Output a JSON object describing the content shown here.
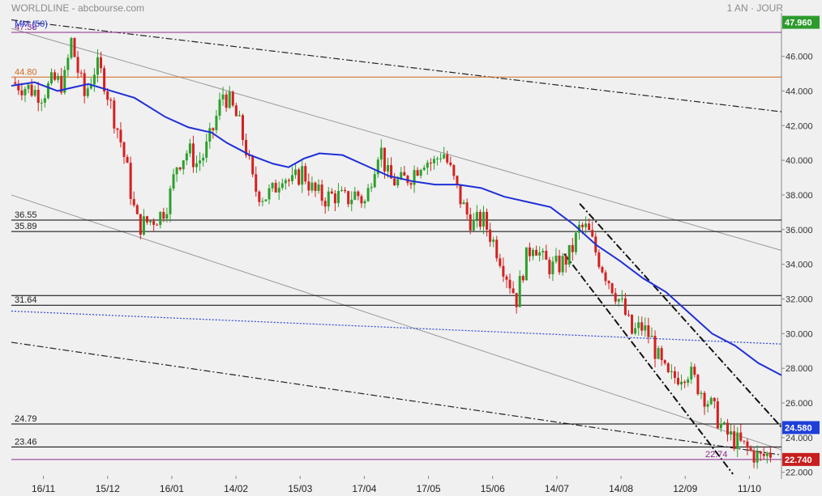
{
  "header": {
    "title": "WORLDLINE - abcbourse.com",
    "period": "1 AN · JOUR"
  },
  "indicator_label": "MM (50)",
  "colors": {
    "up": "#2ca02c",
    "down": "#d42020",
    "ma": "#1f2fd6",
    "purple": "#8b2b8b",
    "orange": "#d2691e",
    "black": "#000000",
    "last_badge": "#2d9b2d",
    "close_badge": "#1e40d8",
    "low_badge": "#c81e1e"
  },
  "chart_data": {
    "type": "candlestick",
    "title": "WORLDLINE - abcbourse.com",
    "ylim": [
      21.8,
      48.5
    ],
    "yticks": [
      22,
      24,
      26,
      28,
      30,
      32,
      34,
      36,
      38,
      40,
      42,
      44,
      46
    ],
    "ytick_labels": [
      "22.000",
      "24.000",
      "26.000",
      "28.000",
      "30.000",
      "32.000",
      "34.000",
      "36.000",
      "38.000",
      "40.000",
      "42.000",
      "44.000",
      "46.000"
    ],
    "xlabels": [
      "16/11",
      "15/12",
      "16/01",
      "14/02",
      "15/03",
      "17/04",
      "17/05",
      "15/06",
      "14/07",
      "14/08",
      "12/09",
      "11/10"
    ],
    "hlines": [
      {
        "y": 47.38,
        "label": "47.38",
        "color": "purple"
      },
      {
        "y": 44.8,
        "label": "44.80",
        "color": "orange"
      },
      {
        "y": 36.55,
        "label": "36.55",
        "color": "black"
      },
      {
        "y": 35.89,
        "label": "35.89",
        "color": "black"
      },
      {
        "y": 32.2,
        "label": "",
        "color": "black"
      },
      {
        "y": 31.64,
        "label": "31.64",
        "color": "black"
      },
      {
        "y": 24.79,
        "label": "24.79",
        "color": "black"
      },
      {
        "y": 23.46,
        "label": "23.46",
        "color": "black"
      },
      {
        "y": 22.74,
        "label": "22.74",
        "color": "purple"
      }
    ],
    "trendlines": [
      {
        "p1": [
          0,
          48.1
        ],
        "p2": [
          1.0,
          42.8
        ],
        "style": "dashdot"
      },
      {
        "p1": [
          0,
          47.6
        ],
        "p2": [
          1.0,
          34.8
        ],
        "style": "thin"
      },
      {
        "p1": [
          0,
          38.0
        ],
        "p2": [
          1.0,
          23.3
        ],
        "style": "thin"
      },
      {
        "p1": [
          0,
          29.5
        ],
        "p2": [
          1.0,
          23.0
        ],
        "style": "dashdot"
      },
      {
        "p1": [
          0,
          31.3
        ],
        "p2": [
          1.0,
          29.4
        ],
        "style": "dotted-blue"
      },
      {
        "p1": [
          0.738,
          37.5
        ],
        "p2": [
          1.0,
          24.6
        ],
        "style": "dash-bold"
      },
      {
        "p1": [
          0.718,
          34.6
        ],
        "p2": [
          0.937,
          21.9
        ],
        "style": "dash-bold"
      }
    ],
    "ma50": [
      [
        0.0,
        44.3
      ],
      [
        0.03,
        44.5
      ],
      [
        0.06,
        44.0
      ],
      [
        0.1,
        44.4
      ],
      [
        0.13,
        44.0
      ],
      [
        0.16,
        43.6
      ],
      [
        0.2,
        42.5
      ],
      [
        0.23,
        41.9
      ],
      [
        0.26,
        41.6
      ],
      [
        0.28,
        41.0
      ],
      [
        0.31,
        40.3
      ],
      [
        0.34,
        39.8
      ],
      [
        0.36,
        39.6
      ],
      [
        0.38,
        40.1
      ],
      [
        0.4,
        40.4
      ],
      [
        0.43,
        40.3
      ],
      [
        0.46,
        39.7
      ],
      [
        0.49,
        39.1
      ],
      [
        0.52,
        38.8
      ],
      [
        0.55,
        38.6
      ],
      [
        0.58,
        38.6
      ],
      [
        0.61,
        38.4
      ],
      [
        0.64,
        37.9
      ],
      [
        0.67,
        37.6
      ],
      [
        0.7,
        37.3
      ],
      [
        0.73,
        36.3
      ],
      [
        0.76,
        35.1
      ],
      [
        0.79,
        34.2
      ],
      [
        0.82,
        33.2
      ],
      [
        0.85,
        32.4
      ],
      [
        0.88,
        31.2
      ],
      [
        0.91,
        30.0
      ],
      [
        0.94,
        29.3
      ],
      [
        0.97,
        28.3
      ],
      [
        1.0,
        27.6
      ]
    ],
    "close_path": [
      [
        0.0,
        44.5
      ],
      [
        0.02,
        44.2
      ],
      [
        0.04,
        43.8
      ],
      [
        0.055,
        44.6
      ],
      [
        0.068,
        44.4
      ],
      [
        0.078,
        46.9
      ],
      [
        0.085,
        45.4
      ],
      [
        0.095,
        43.7
      ],
      [
        0.11,
        45.5
      ],
      [
        0.12,
        44.7
      ],
      [
        0.13,
        43.0
      ],
      [
        0.14,
        41.5
      ],
      [
        0.15,
        39.5
      ],
      [
        0.158,
        37.4
      ],
      [
        0.165,
        36.2
      ],
      [
        0.18,
        36.5
      ],
      [
        0.195,
        36.9
      ],
      [
        0.205,
        37.8
      ],
      [
        0.215,
        39.8
      ],
      [
        0.23,
        40.6
      ],
      [
        0.24,
        39.8
      ],
      [
        0.25,
        40.3
      ],
      [
        0.26,
        41.5
      ],
      [
        0.275,
        43.9
      ],
      [
        0.285,
        43.2
      ],
      [
        0.295,
        42.2
      ],
      [
        0.305,
        40.6
      ],
      [
        0.315,
        38.4
      ],
      [
        0.328,
        37.9
      ],
      [
        0.34,
        38.2
      ],
      [
        0.352,
        39.3
      ],
      [
        0.364,
        38.6
      ],
      [
        0.378,
        39.4
      ],
      [
        0.392,
        38.2
      ],
      [
        0.406,
        37.8
      ],
      [
        0.42,
        38.0
      ],
      [
        0.434,
        37.7
      ],
      [
        0.448,
        38.1
      ],
      [
        0.46,
        37.5
      ],
      [
        0.468,
        39.2
      ],
      [
        0.478,
        40.9
      ],
      [
        0.49,
        38.9
      ],
      [
        0.505,
        38.7
      ],
      [
        0.52,
        39.2
      ],
      [
        0.535,
        40.1
      ],
      [
        0.548,
        39.8
      ],
      [
        0.56,
        40.6
      ],
      [
        0.57,
        39.4
      ],
      [
        0.58,
        38.1
      ],
      [
        0.59,
        37.0
      ],
      [
        0.6,
        36.3
      ],
      [
        0.612,
        36.6
      ],
      [
        0.622,
        35.7
      ],
      [
        0.634,
        34.5
      ],
      [
        0.646,
        33.1
      ],
      [
        0.656,
        32.0
      ],
      [
        0.666,
        34.0
      ],
      [
        0.678,
        35.4
      ],
      [
        0.69,
        34.2
      ],
      [
        0.702,
        33.8
      ],
      [
        0.714,
        34.0
      ],
      [
        0.726,
        34.6
      ],
      [
        0.738,
        36.1
      ],
      [
        0.748,
        36.0
      ],
      [
        0.758,
        34.8
      ],
      [
        0.77,
        33.6
      ],
      [
        0.782,
        32.6
      ],
      [
        0.794,
        31.5
      ],
      [
        0.806,
        30.0
      ],
      [
        0.818,
        30.4
      ],
      [
        0.83,
        29.8
      ],
      [
        0.842,
        28.3
      ],
      [
        0.854,
        27.3
      ],
      [
        0.866,
        27.6
      ],
      [
        0.878,
        27.9
      ],
      [
        0.89,
        27.1
      ],
      [
        0.902,
        26.3
      ],
      [
        0.914,
        25.4
      ],
      [
        0.926,
        24.3
      ],
      [
        0.938,
        23.9
      ],
      [
        0.95,
        23.5
      ],
      [
        0.962,
        23.1
      ],
      [
        0.972,
        22.8
      ],
      [
        0.98,
        23.0
      ],
      [
        0.99,
        23.2
      ]
    ],
    "badges": [
      {
        "y": 47.96,
        "label": "47.960",
        "color": "last_badge"
      },
      {
        "y": 24.58,
        "label": "24.580",
        "color": "close_badge"
      },
      {
        "y": 22.74,
        "label": "22.740",
        "color": "low_badge"
      }
    ]
  }
}
